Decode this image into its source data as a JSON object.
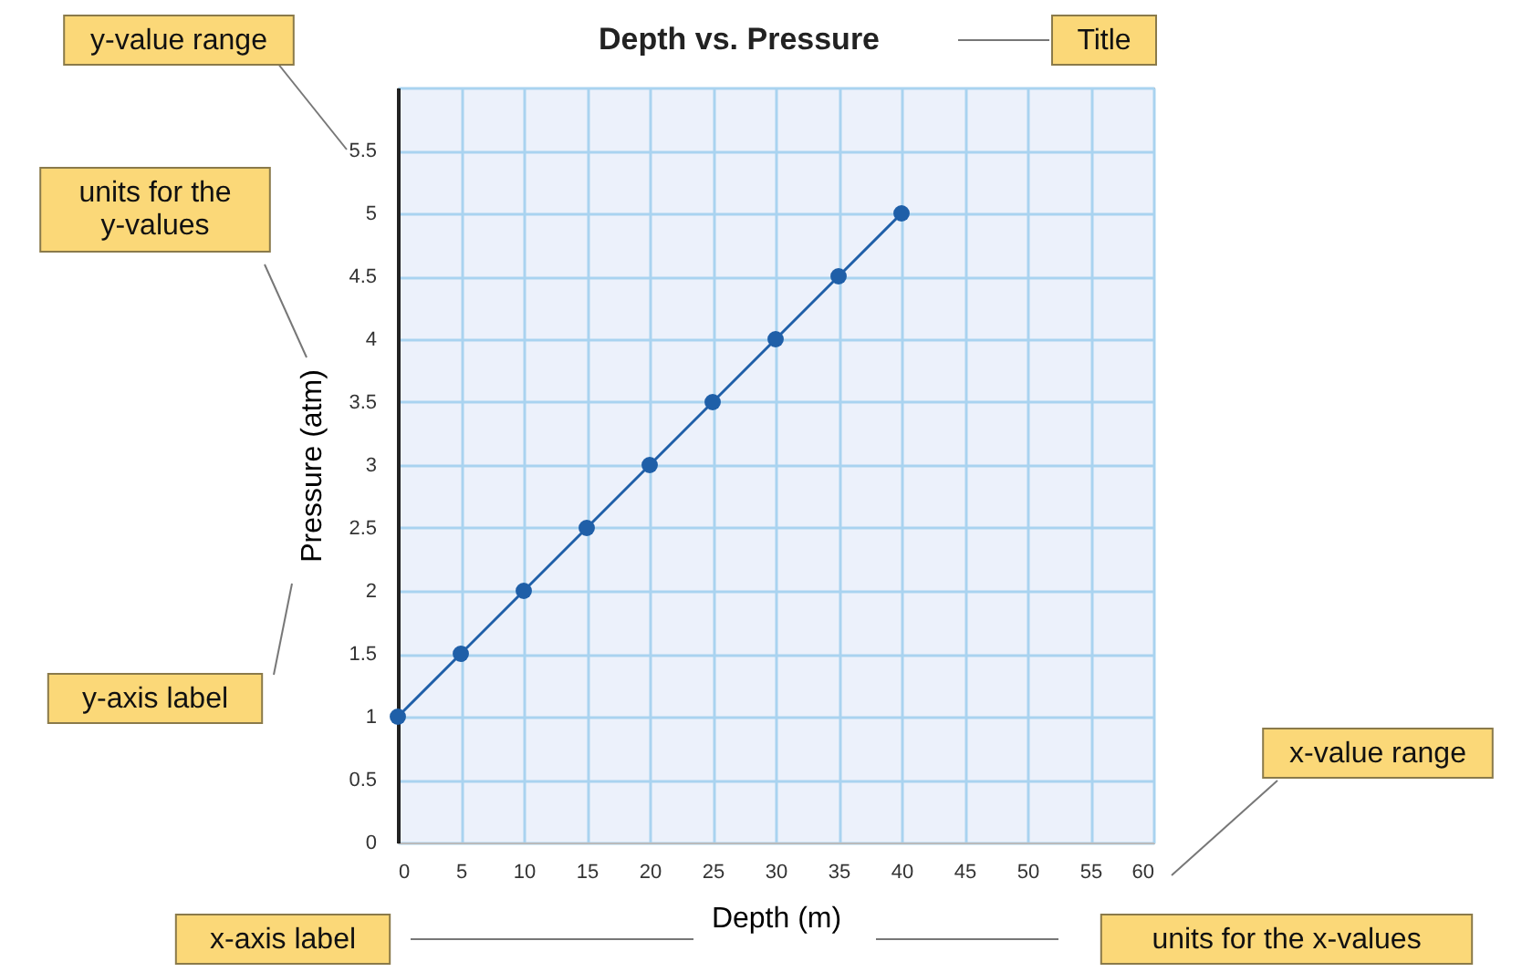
{
  "chart_data": {
    "type": "line",
    "title": "Depth vs. Pressure",
    "xlabel": "Depth (m)",
    "ylabel": "Pressure (atm)",
    "x": [
      0,
      5,
      10,
      15,
      20,
      25,
      30,
      35,
      40
    ],
    "series": [
      {
        "color": "#1f5fa8",
        "values": [
          1,
          1.5,
          2,
          2.5,
          3,
          3.5,
          4,
          4.5,
          5
        ]
      }
    ],
    "xlim": [
      0,
      60
    ],
    "xticks": [
      0,
      5,
      10,
      15,
      20,
      25,
      30,
      35,
      40,
      45,
      50,
      55,
      60
    ],
    "ylim": [
      0,
      6
    ],
    "yticks": [
      0,
      0.5,
      1,
      1.5,
      2,
      2.5,
      3,
      3.5,
      4,
      4.5,
      5,
      5.5,
      {
        "value": 6,
        "label": null
      }
    ],
    "grid": true,
    "marker": "circle",
    "line_style": "solid",
    "annotations": [
      "y-value range",
      "units for the\ny-values",
      "y-axis label",
      "x-axis label",
      "Title",
      "x-value range",
      "units for the x-values"
    ]
  }
}
